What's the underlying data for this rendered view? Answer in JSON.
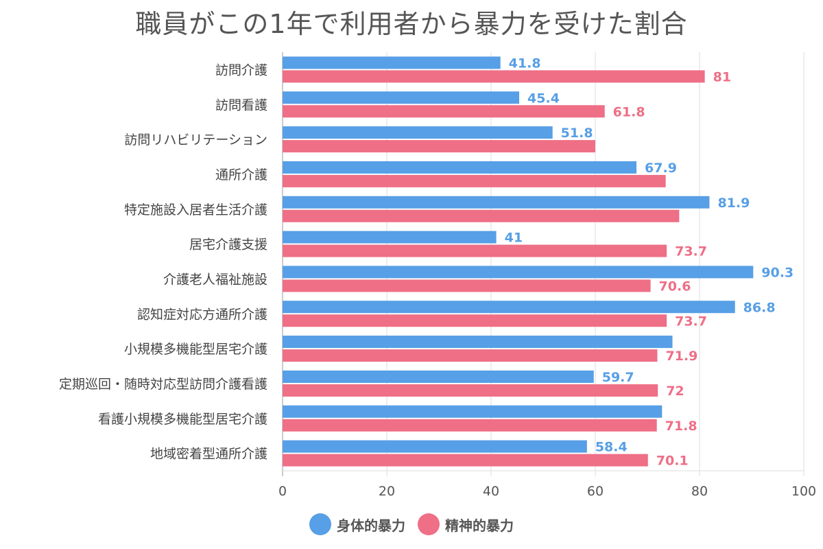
{
  "title": "職員がこの1年で利用者から暴力を受けた割合",
  "colors": {
    "physical": "#579fe6",
    "mental": "#ee6f86",
    "grid": "#dddddd",
    "axis": "#999999"
  },
  "chart_data": {
    "type": "bar",
    "orientation": "horizontal",
    "title": "職員がこの1年で利用者から暴力を受けた割合",
    "xlabel": "",
    "ylabel": "",
    "xlim": [
      0,
      100
    ],
    "x_ticks": [
      0,
      20,
      40,
      60,
      80,
      100
    ],
    "grid": true,
    "legend_position": "bottom",
    "categories": [
      "訪問介護",
      "訪問看護",
      "訪問リハビリテーション",
      "通所介護",
      "特定施設入居者生活介護",
      "居宅介護支援",
      "介護老人福祉施設",
      "認知症対応方通所介護",
      "小規模多機能型居宅介護",
      "定期巡回・随時対応型訪問介護看護",
      "看護小規模多機能型居宅介護",
      "地域密着型通所介護"
    ],
    "series": [
      {
        "name": "身体的暴力",
        "color": "#579fe6",
        "values": [
          41.8,
          45.4,
          51.8,
          67.9,
          81.9,
          41,
          90.3,
          86.8,
          74.8,
          59.7,
          72.8,
          58.4
        ],
        "labels": [
          "41.8",
          "45.4",
          "51.8",
          "67.9",
          "81.9",
          "41",
          "90.3",
          "86.8",
          "",
          "59.7",
          "",
          "58.4"
        ]
      },
      {
        "name": "精神的暴力",
        "color": "#ee6f86",
        "values": [
          81,
          61.8,
          60.0,
          73.5,
          76.1,
          73.7,
          70.6,
          73.7,
          71.9,
          72,
          71.8,
          70.1
        ],
        "labels": [
          "81",
          "61.8",
          "",
          "",
          "",
          "73.7",
          "70.6",
          "73.7",
          "71.9",
          "72",
          "71.8",
          "70.1"
        ]
      }
    ]
  }
}
